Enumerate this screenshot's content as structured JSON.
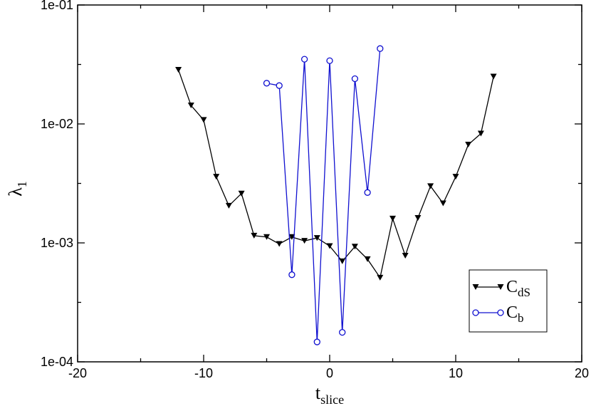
{
  "chart_data": {
    "type": "line",
    "title": "",
    "xlabel": {
      "main": "t",
      "sub": "slice"
    },
    "ylabel": {
      "main": "λ",
      "sub": "1"
    },
    "xlim": [
      -20,
      20
    ],
    "ylim": [
      0.0001,
      0.1
    ],
    "yscale": "log",
    "grid": false,
    "x_ticks": [
      -20,
      -10,
      0,
      10,
      20
    ],
    "x_tick_labels": [
      "-20",
      "-10",
      "0",
      "10",
      "20"
    ],
    "y_ticks": [
      0.0001,
      0.001,
      0.01,
      0.1
    ],
    "y_tick_labels": [
      "1e-04",
      "1e-03",
      "1e-02",
      "1e-01"
    ],
    "legend_position": "bottom-right",
    "series": [
      {
        "name": "C_dS",
        "label_main": "C",
        "label_sub": "dS",
        "color": "#000000",
        "marker": "triangle-down-filled",
        "x": [
          -12,
          -11,
          -10,
          -9,
          -8,
          -7,
          -6,
          -5,
          -4,
          -3,
          -2,
          -1,
          0,
          1,
          2,
          3,
          4,
          5,
          6,
          7,
          8,
          9,
          10,
          11,
          12,
          13
        ],
        "y": [
          0.0285,
          0.0143,
          0.0108,
          0.0036,
          0.00205,
          0.0026,
          0.00115,
          0.00112,
          0.00098,
          0.00112,
          0.00104,
          0.0011,
          0.00094,
          0.0007,
          0.00093,
          0.00073,
          0.00051,
          0.0016,
          0.00078,
          0.00162,
          0.003,
          0.00215,
          0.0036,
          0.0067,
          0.0083,
          0.025
        ]
      },
      {
        "name": "C_b",
        "label_main": "C",
        "label_sub": "b",
        "color": "#1010d0",
        "marker": "circle-open",
        "x": [
          -5,
          -4,
          -3,
          -2,
          -1,
          0,
          1,
          2,
          3,
          4
        ],
        "y": [
          0.022,
          0.021,
          0.00054,
          0.035,
          0.000147,
          0.034,
          0.000177,
          0.024,
          0.00265,
          0.043
        ]
      }
    ]
  }
}
